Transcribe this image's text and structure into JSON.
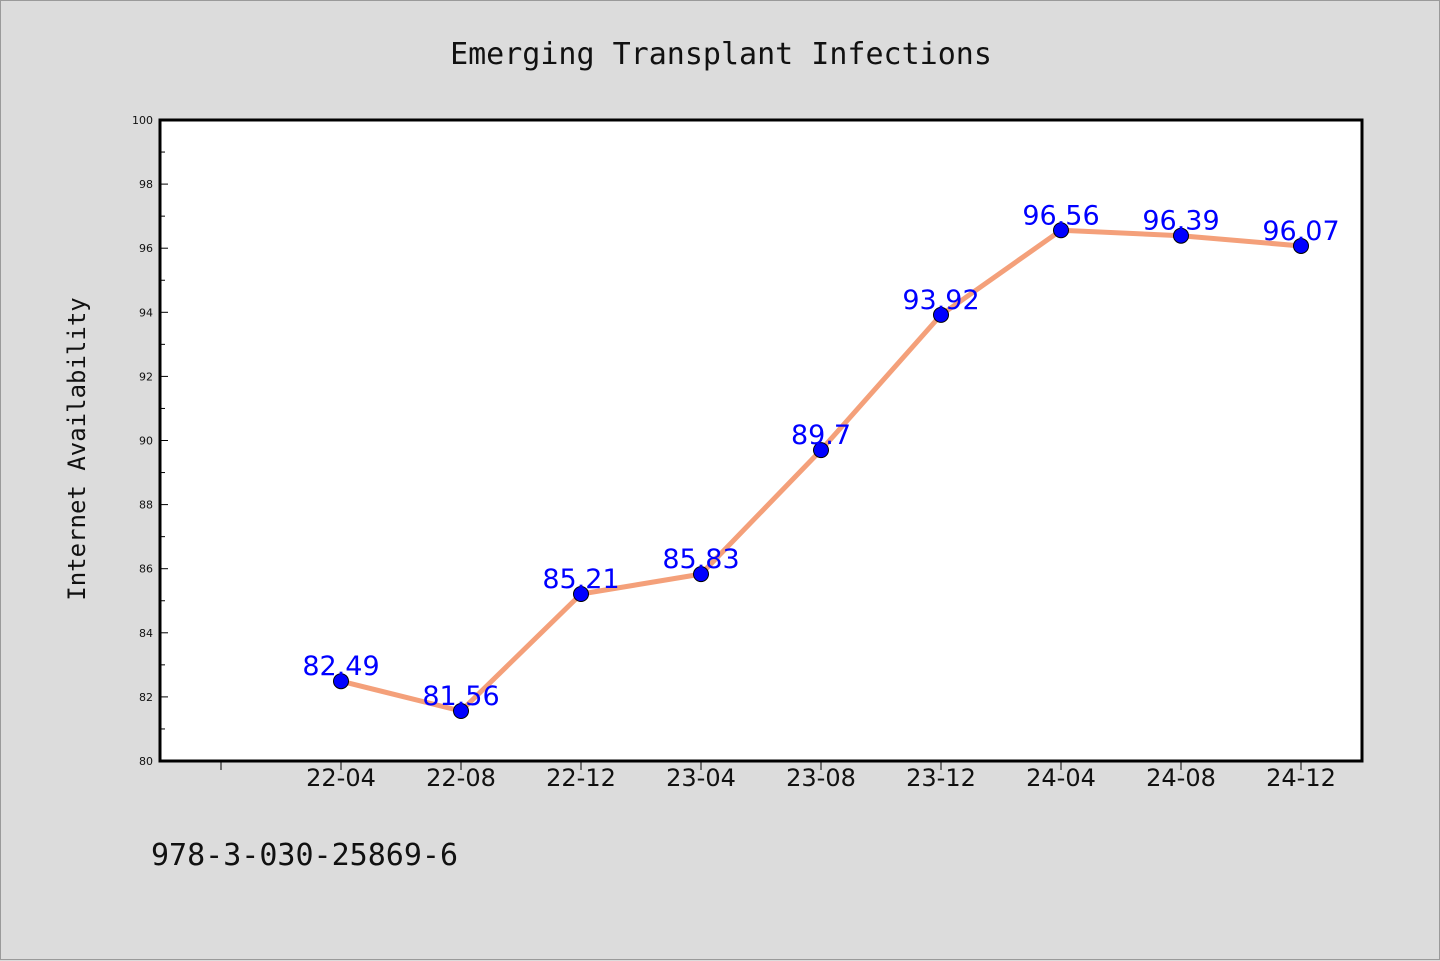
{
  "chart_data": {
    "type": "line",
    "title": "Emerging Transplant Infections",
    "xlabel": "",
    "ylabel": "Internet Availability",
    "categories": [
      "22-04",
      "22-08",
      "22-12",
      "23-04",
      "23-08",
      "23-12",
      "24-04",
      "24-08",
      "24-12"
    ],
    "series": [
      {
        "values": [
          82.49,
          81.56,
          85.21,
          85.83,
          89.7,
          93.92,
          96.56,
          96.39,
          96.07
        ],
        "labels": [
          "82.49",
          "81.56",
          "85.21",
          "85.83",
          "89.7",
          "93.92",
          "96.56",
          "96.39",
          "96.07"
        ]
      }
    ],
    "ylim": [
      80,
      100
    ],
    "yticks": [
      80,
      82,
      84,
      86,
      88,
      90,
      92,
      94,
      96,
      98,
      100
    ],
    "ytick_labels": [
      "80",
      "82",
      "84",
      "86",
      "88",
      "90",
      "92",
      "94",
      "96",
      "98",
      "100"
    ],
    "grid": false,
    "line_color": "#f4a07a",
    "marker_color": "#0000ff",
    "data_label_color": "#0000ff",
    "plot_background": "#ffffff",
    "figure_background": "#dcdcdc"
  },
  "footer": {
    "isbn": "978-3-030-25869-6"
  }
}
